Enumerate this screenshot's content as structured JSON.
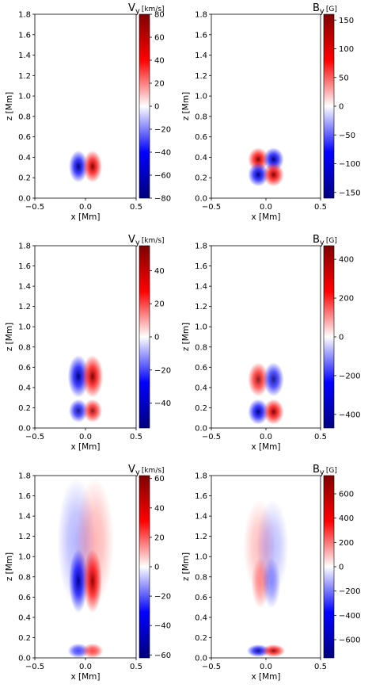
{
  "chart_data": [
    {
      "type": "heatmap",
      "row": 0,
      "col": 0,
      "title_main": "V",
      "title_sub": "y",
      "unit": "[km/s]",
      "xlabel": "x [Mm]",
      "ylabel": "z [Mm]",
      "xlim": [
        -0.5,
        0.5
      ],
      "ylim": [
        0.0,
        1.8
      ],
      "xticks": [
        "−0.5",
        "0.0",
        "0.5"
      ],
      "yticks": [
        "0.0",
        "0.2",
        "0.4",
        "0.6",
        "0.8",
        "1.0",
        "1.2",
        "1.4",
        "1.6",
        "1.8"
      ],
      "clim": [
        -80,
        80
      ],
      "cticks": [
        "80",
        "60",
        "40",
        "20",
        "0",
        "−20",
        "−40",
        "−60",
        "−80"
      ],
      "blobs": [
        {
          "x": -0.07,
          "z": 0.31,
          "sx": 0.045,
          "sz": 0.075,
          "amp": -80
        },
        {
          "x": 0.07,
          "z": 0.31,
          "sx": 0.045,
          "sz": 0.075,
          "amp": 80
        }
      ]
    },
    {
      "type": "heatmap",
      "row": 0,
      "col": 1,
      "title_main": "B",
      "title_sub": "y",
      "unit": "[G]",
      "xlabel": "x [Mm]",
      "ylabel": "z [Mm]",
      "xlim": [
        -0.5,
        0.5
      ],
      "ylim": [
        0.0,
        1.8
      ],
      "xticks": [
        "−0.5",
        "0.0",
        "0.5"
      ],
      "yticks": [
        "0.0",
        "0.2",
        "0.4",
        "0.6",
        "0.8",
        "1.0",
        "1.2",
        "1.4",
        "1.6",
        "1.8"
      ],
      "clim": [
        -160,
        160
      ],
      "cticks": [
        "150",
        "100",
        "50",
        "0",
        "−50",
        "−100",
        "−150"
      ],
      "blobs": [
        {
          "x": -0.07,
          "z": 0.38,
          "sx": 0.045,
          "sz": 0.055,
          "amp": 160
        },
        {
          "x": 0.07,
          "z": 0.38,
          "sx": 0.045,
          "sz": 0.055,
          "amp": -160
        },
        {
          "x": -0.07,
          "z": 0.23,
          "sx": 0.045,
          "sz": 0.055,
          "amp": -160
        },
        {
          "x": 0.07,
          "z": 0.23,
          "sx": 0.045,
          "sz": 0.055,
          "amp": 160
        }
      ]
    },
    {
      "type": "heatmap",
      "row": 1,
      "col": 0,
      "title_main": "V",
      "title_sub": "y",
      "unit": "[km/s]",
      "xlabel": "x [Mm]",
      "ylabel": "z [Mm]",
      "xlim": [
        -0.5,
        0.5
      ],
      "ylim": [
        0.0,
        1.8
      ],
      "xticks": [
        "−0.5",
        "0.0",
        "0.5"
      ],
      "yticks": [
        "0.0",
        "0.2",
        "0.4",
        "0.6",
        "0.8",
        "1.0",
        "1.2",
        "1.4",
        "1.6",
        "1.8"
      ],
      "clim": [
        -55,
        55
      ],
      "cticks": [
        "40",
        "20",
        "0",
        "−20",
        "−40"
      ],
      "blobs": [
        {
          "x": -0.07,
          "z": 0.51,
          "sx": 0.05,
          "sz": 0.1,
          "amp": -55
        },
        {
          "x": 0.07,
          "z": 0.51,
          "sx": 0.05,
          "sz": 0.1,
          "amp": 55
        },
        {
          "x": -0.07,
          "z": 0.17,
          "sx": 0.045,
          "sz": 0.055,
          "amp": -50
        },
        {
          "x": 0.07,
          "z": 0.17,
          "sx": 0.045,
          "sz": 0.055,
          "amp": 50
        }
      ]
    },
    {
      "type": "heatmap",
      "row": 1,
      "col": 1,
      "title_main": "B",
      "title_sub": "y",
      "unit": "[G]",
      "xlabel": "x [Mm]",
      "ylabel": "z [Mm]",
      "xlim": [
        -0.5,
        0.5
      ],
      "ylim": [
        0.0,
        1.8
      ],
      "xticks": [
        "−0.5",
        "0.0",
        "0.5"
      ],
      "yticks": [
        "0.0",
        "0.2",
        "0.4",
        "0.6",
        "0.8",
        "1.0",
        "1.2",
        "1.4",
        "1.6",
        "1.8"
      ],
      "clim": [
        -470,
        470
      ],
      "cticks": [
        "400",
        "200",
        "0",
        "−200",
        "−400"
      ],
      "blobs": [
        {
          "x": -0.07,
          "z": 0.48,
          "sx": 0.045,
          "sz": 0.08,
          "amp": 420
        },
        {
          "x": 0.07,
          "z": 0.48,
          "sx": 0.045,
          "sz": 0.08,
          "amp": -420
        },
        {
          "x": -0.07,
          "z": 0.16,
          "sx": 0.045,
          "sz": 0.06,
          "amp": -470
        },
        {
          "x": 0.07,
          "z": 0.16,
          "sx": 0.045,
          "sz": 0.06,
          "amp": 470
        }
      ]
    },
    {
      "type": "heatmap",
      "row": 2,
      "col": 0,
      "title_main": "V",
      "title_sub": "y",
      "unit": "[km/s]",
      "xlabel": "x [Mm]",
      "ylabel": "z [Mm]",
      "xlim": [
        -0.5,
        0.5
      ],
      "ylim": [
        0.0,
        1.8
      ],
      "xticks": [
        "−0.5",
        "0.0",
        "0.5"
      ],
      "yticks": [
        "0.0",
        "0.2",
        "0.4",
        "0.6",
        "0.8",
        "1.0",
        "1.2",
        "1.4",
        "1.6",
        "1.8"
      ],
      "clim": [
        -62,
        62
      ],
      "cticks": [
        "60",
        "40",
        "20",
        "0",
        "−20",
        "−40",
        "−60"
      ],
      "blobs": [
        {
          "x": -0.07,
          "z": 0.76,
          "sx": 0.045,
          "sz": 0.15,
          "amp": -62
        },
        {
          "x": 0.07,
          "z": 0.76,
          "sx": 0.045,
          "sz": 0.15,
          "amp": 62
        },
        {
          "x": -0.09,
          "z": 1.15,
          "sx": 0.09,
          "sz": 0.3,
          "amp": -18
        },
        {
          "x": 0.09,
          "z": 1.15,
          "sx": 0.09,
          "sz": 0.3,
          "amp": 18
        },
        {
          "x": -0.07,
          "z": 0.07,
          "sx": 0.05,
          "sz": 0.035,
          "amp": -45
        },
        {
          "x": 0.07,
          "z": 0.07,
          "sx": 0.05,
          "sz": 0.035,
          "amp": 45
        }
      ]
    },
    {
      "type": "heatmap",
      "row": 2,
      "col": 1,
      "title_main": "B",
      "title_sub": "y",
      "unit": "[G]",
      "xlabel": "x [Mm]",
      "ylabel": "z [Mm]",
      "xlim": [
        -0.5,
        0.5
      ],
      "ylim": [
        0.0,
        1.8
      ],
      "xticks": [
        "−0.5",
        "0.0",
        "0.5"
      ],
      "yticks": [
        "0.0",
        "0.2",
        "0.4",
        "0.6",
        "0.8",
        "1.0",
        "1.2",
        "1.4",
        "1.6",
        "1.8"
      ],
      "clim": [
        -750,
        750
      ],
      "cticks": [
        "600",
        "400",
        "200",
        "0",
        "−200",
        "−400",
        "−600"
      ],
      "blobs": [
        {
          "x": -0.05,
          "z": 0.74,
          "sx": 0.04,
          "sz": 0.12,
          "amp": 320
        },
        {
          "x": 0.05,
          "z": 0.74,
          "sx": 0.04,
          "sz": 0.12,
          "amp": -320
        },
        {
          "x": -0.06,
          "z": 1.1,
          "sx": 0.07,
          "sz": 0.22,
          "amp": 90
        },
        {
          "x": 0.06,
          "z": 1.1,
          "sx": 0.07,
          "sz": 0.22,
          "amp": -90
        },
        {
          "x": -0.07,
          "z": 0.07,
          "sx": 0.05,
          "sz": 0.03,
          "amp": -700
        },
        {
          "x": 0.07,
          "z": 0.07,
          "sx": 0.05,
          "sz": 0.03,
          "amp": 700
        }
      ]
    }
  ],
  "colormap": {
    "low": "#00007f",
    "mid_low": "#0000ff",
    "zero": "#ffffff",
    "mid_high": "#ff0000",
    "high": "#7f0000"
  }
}
